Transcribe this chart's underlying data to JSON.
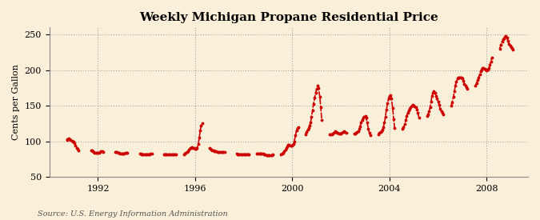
{
  "title": "Weekly Michigan Propane Residential Price",
  "ylabel": "Cents per Gallon",
  "source": "Source: U.S. Energy Information Administration",
  "background_color": "#faefd9",
  "line_color": "#cc0000",
  "xlim_start": 1990.0,
  "xlim_end": 2009.7,
  "ylim": [
    50,
    260
  ],
  "yticks": [
    50,
    100,
    150,
    200,
    250
  ],
  "xticks": [
    1992,
    1996,
    2000,
    2004,
    2008
  ],
  "segments": [
    [
      [
        1990.72,
        102
      ],
      [
        1990.75,
        103
      ],
      [
        1990.79,
        104
      ],
      [
        1990.83,
        103
      ],
      [
        1990.87,
        102
      ],
      [
        1990.92,
        101
      ],
      [
        1990.96,
        100
      ],
      [
        1991.0,
        99
      ],
      [
        1991.04,
        97
      ],
      [
        1991.08,
        94
      ],
      [
        1991.13,
        91
      ],
      [
        1991.17,
        89
      ],
      [
        1991.21,
        87
      ]
    ],
    [
      [
        1991.72,
        87
      ],
      [
        1991.75,
        87
      ],
      [
        1991.79,
        86
      ],
      [
        1991.83,
        85
      ],
      [
        1991.87,
        84
      ],
      [
        1991.92,
        84
      ],
      [
        1991.96,
        84
      ],
      [
        1992.0,
        84
      ],
      [
        1992.04,
        84
      ],
      [
        1992.08,
        85
      ],
      [
        1992.13,
        86
      ],
      [
        1992.17,
        86
      ],
      [
        1992.21,
        85
      ]
    ],
    [
      [
        1992.72,
        85
      ],
      [
        1992.75,
        85
      ],
      [
        1992.79,
        85
      ],
      [
        1992.83,
        84
      ],
      [
        1992.87,
        84
      ],
      [
        1992.92,
        83
      ],
      [
        1992.96,
        83
      ],
      [
        1993.0,
        83
      ],
      [
        1993.04,
        83
      ],
      [
        1993.08,
        83
      ],
      [
        1993.13,
        84
      ],
      [
        1993.17,
        84
      ],
      [
        1993.21,
        84
      ]
    ],
    [
      [
        1993.72,
        83
      ],
      [
        1993.75,
        83
      ],
      [
        1993.79,
        82
      ],
      [
        1993.83,
        82
      ],
      [
        1993.87,
        82
      ],
      [
        1993.92,
        82
      ],
      [
        1993.96,
        82
      ],
      [
        1994.0,
        82
      ],
      [
        1994.04,
        82
      ],
      [
        1994.08,
        82
      ],
      [
        1994.13,
        82
      ],
      [
        1994.17,
        83
      ],
      [
        1994.21,
        83
      ]
    ],
    [
      [
        1994.72,
        82
      ],
      [
        1994.75,
        82
      ],
      [
        1994.79,
        82
      ],
      [
        1994.83,
        82
      ],
      [
        1994.87,
        81
      ],
      [
        1994.92,
        81
      ],
      [
        1994.96,
        81
      ],
      [
        1995.0,
        81
      ],
      [
        1995.04,
        81
      ],
      [
        1995.08,
        81
      ],
      [
        1995.13,
        81
      ],
      [
        1995.17,
        82
      ],
      [
        1995.21,
        82
      ]
    ],
    [
      [
        1995.54,
        82
      ],
      [
        1995.58,
        83
      ],
      [
        1995.62,
        84
      ],
      [
        1995.67,
        85
      ],
      [
        1995.71,
        86
      ],
      [
        1995.75,
        88
      ],
      [
        1995.79,
        90
      ],
      [
        1995.83,
        91
      ],
      [
        1995.87,
        92
      ],
      [
        1995.92,
        91
      ],
      [
        1995.96,
        90
      ],
      [
        1996.0,
        89
      ],
      [
        1996.04,
        89
      ],
      [
        1996.08,
        91
      ],
      [
        1996.13,
        96
      ],
      [
        1996.17,
        105
      ],
      [
        1996.21,
        115
      ],
      [
        1996.25,
        122
      ],
      [
        1996.29,
        125
      ]
    ],
    [
      [
        1996.58,
        90
      ],
      [
        1996.63,
        89
      ],
      [
        1996.67,
        88
      ],
      [
        1996.71,
        87
      ],
      [
        1996.75,
        87
      ],
      [
        1996.79,
        86
      ],
      [
        1996.83,
        86
      ],
      [
        1996.87,
        86
      ],
      [
        1996.92,
        85
      ],
      [
        1996.96,
        85
      ],
      [
        1997.0,
        85
      ],
      [
        1997.04,
        85
      ],
      [
        1997.08,
        85
      ],
      [
        1997.13,
        85
      ],
      [
        1997.17,
        85
      ],
      [
        1997.21,
        85
      ]
    ],
    [
      [
        1997.71,
        83
      ],
      [
        1997.75,
        82
      ],
      [
        1997.79,
        82
      ],
      [
        1997.83,
        82
      ],
      [
        1997.87,
        82
      ],
      [
        1997.92,
        82
      ],
      [
        1997.96,
        82
      ],
      [
        1998.0,
        82
      ],
      [
        1998.04,
        82
      ],
      [
        1998.08,
        82
      ],
      [
        1998.13,
        82
      ],
      [
        1998.17,
        82
      ],
      [
        1998.21,
        82
      ]
    ],
    [
      [
        1998.54,
        83
      ],
      [
        1998.58,
        83
      ],
      [
        1998.63,
        83
      ],
      [
        1998.67,
        83
      ],
      [
        1998.71,
        83
      ],
      [
        1998.75,
        83
      ],
      [
        1998.79,
        83
      ],
      [
        1998.83,
        82
      ],
      [
        1998.87,
        81
      ],
      [
        1998.92,
        80
      ],
      [
        1998.96,
        80
      ],
      [
        1999.0,
        80
      ],
      [
        1999.04,
        80
      ],
      [
        1999.08,
        80
      ],
      [
        1999.13,
        80
      ],
      [
        1999.17,
        80
      ],
      [
        1999.21,
        81
      ]
    ],
    [
      [
        1999.54,
        82
      ],
      [
        1999.58,
        83
      ],
      [
        1999.63,
        84
      ],
      [
        1999.67,
        86
      ],
      [
        1999.71,
        88
      ],
      [
        1999.75,
        90
      ],
      [
        1999.79,
        93
      ],
      [
        1999.83,
        95
      ],
      [
        1999.87,
        95
      ],
      [
        1999.92,
        94
      ],
      [
        1999.96,
        94
      ],
      [
        2000.0,
        94
      ],
      [
        2000.04,
        96
      ],
      [
        2000.08,
        100
      ],
      [
        2000.13,
        108
      ],
      [
        2000.17,
        115
      ],
      [
        2000.21,
        119
      ],
      [
        2000.25,
        120
      ]
    ],
    [
      [
        2000.54,
        110
      ],
      [
        2000.58,
        113
      ],
      [
        2000.63,
        116
      ],
      [
        2000.67,
        119
      ],
      [
        2000.71,
        122
      ],
      [
        2000.75,
        126
      ],
      [
        2000.79,
        134
      ],
      [
        2000.83,
        143
      ],
      [
        2000.87,
        152
      ],
      [
        2000.92,
        161
      ],
      [
        2000.96,
        168
      ],
      [
        2001.0,
        174
      ],
      [
        2001.04,
        178
      ],
      [
        2001.08,
        175
      ],
      [
        2001.13,
        163
      ],
      [
        2001.17,
        148
      ],
      [
        2001.21,
        130
      ]
    ],
    [
      [
        2001.54,
        110
      ],
      [
        2001.58,
        110
      ],
      [
        2001.63,
        110
      ],
      [
        2001.67,
        111
      ],
      [
        2001.71,
        112
      ],
      [
        2001.75,
        114
      ],
      [
        2001.79,
        113
      ],
      [
        2001.83,
        112
      ],
      [
        2001.87,
        112
      ],
      [
        2001.92,
        111
      ],
      [
        2001.96,
        111
      ],
      [
        2002.0,
        111
      ],
      [
        2002.04,
        112
      ],
      [
        2002.08,
        113
      ],
      [
        2002.13,
        114
      ],
      [
        2002.17,
        113
      ],
      [
        2002.21,
        112
      ]
    ],
    [
      [
        2002.54,
        111
      ],
      [
        2002.58,
        111
      ],
      [
        2002.63,
        112
      ],
      [
        2002.67,
        113
      ],
      [
        2002.71,
        114
      ],
      [
        2002.75,
        117
      ],
      [
        2002.79,
        121
      ],
      [
        2002.83,
        126
      ],
      [
        2002.87,
        130
      ],
      [
        2002.92,
        133
      ],
      [
        2002.96,
        134
      ],
      [
        2003.0,
        135
      ],
      [
        2003.04,
        133
      ],
      [
        2003.08,
        126
      ],
      [
        2003.13,
        118
      ],
      [
        2003.17,
        112
      ],
      [
        2003.21,
        108
      ]
    ],
    [
      [
        2003.54,
        110
      ],
      [
        2003.58,
        112
      ],
      [
        2003.63,
        113
      ],
      [
        2003.67,
        114
      ],
      [
        2003.71,
        116
      ],
      [
        2003.75,
        120
      ],
      [
        2003.79,
        126
      ],
      [
        2003.83,
        134
      ],
      [
        2003.87,
        144
      ],
      [
        2003.92,
        153
      ],
      [
        2003.96,
        160
      ],
      [
        2004.0,
        164
      ],
      [
        2004.04,
        165
      ],
      [
        2004.08,
        160
      ],
      [
        2004.13,
        147
      ],
      [
        2004.17,
        131
      ],
      [
        2004.21,
        119
      ]
    ],
    [
      [
        2004.54,
        118
      ],
      [
        2004.58,
        120
      ],
      [
        2004.63,
        124
      ],
      [
        2004.67,
        130
      ],
      [
        2004.71,
        136
      ],
      [
        2004.75,
        140
      ],
      [
        2004.79,
        143
      ],
      [
        2004.83,
        146
      ],
      [
        2004.87,
        148
      ],
      [
        2004.92,
        150
      ],
      [
        2004.96,
        151
      ],
      [
        2005.0,
        150
      ],
      [
        2005.04,
        149
      ],
      [
        2005.08,
        148
      ],
      [
        2005.13,
        145
      ],
      [
        2005.17,
        140
      ],
      [
        2005.21,
        133
      ]
    ],
    [
      [
        2005.54,
        135
      ],
      [
        2005.58,
        138
      ],
      [
        2005.63,
        142
      ],
      [
        2005.67,
        148
      ],
      [
        2005.71,
        156
      ],
      [
        2005.75,
        164
      ],
      [
        2005.79,
        168
      ],
      [
        2005.83,
        170
      ],
      [
        2005.87,
        168
      ],
      [
        2005.92,
        164
      ],
      [
        2005.96,
        160
      ],
      [
        2006.0,
        156
      ],
      [
        2006.04,
        151
      ],
      [
        2006.08,
        146
      ],
      [
        2006.13,
        142
      ],
      [
        2006.17,
        140
      ],
      [
        2006.21,
        138
      ]
    ],
    [
      [
        2006.54,
        150
      ],
      [
        2006.58,
        155
      ],
      [
        2006.63,
        162
      ],
      [
        2006.67,
        170
      ],
      [
        2006.71,
        178
      ],
      [
        2006.75,
        184
      ],
      [
        2006.79,
        188
      ],
      [
        2006.83,
        190
      ],
      [
        2006.87,
        190
      ],
      [
        2006.92,
        190
      ],
      [
        2006.96,
        190
      ],
      [
        2007.0,
        188
      ],
      [
        2007.04,
        185
      ],
      [
        2007.08,
        181
      ],
      [
        2007.13,
        178
      ],
      [
        2007.17,
        176
      ],
      [
        2007.21,
        174
      ]
    ],
    [
      [
        2007.54,
        178
      ],
      [
        2007.58,
        182
      ],
      [
        2007.63,
        186
      ],
      [
        2007.67,
        190
      ],
      [
        2007.71,
        194
      ],
      [
        2007.75,
        198
      ],
      [
        2007.79,
        201
      ],
      [
        2007.83,
        203
      ],
      [
        2007.87,
        203
      ],
      [
        2007.92,
        202
      ],
      [
        2007.96,
        201
      ],
      [
        2008.0,
        200
      ],
      [
        2008.04,
        201
      ],
      [
        2008.08,
        203
      ],
      [
        2008.13,
        207
      ],
      [
        2008.17,
        212
      ],
      [
        2008.21,
        218
      ]
    ],
    [
      [
        2008.54,
        230
      ],
      [
        2008.58,
        236
      ],
      [
        2008.63,
        240
      ],
      [
        2008.67,
        243
      ],
      [
        2008.71,
        245
      ],
      [
        2008.75,
        247
      ],
      [
        2008.79,
        248
      ],
      [
        2008.83,
        246
      ],
      [
        2008.87,
        241
      ],
      [
        2008.92,
        237
      ],
      [
        2008.96,
        234
      ],
      [
        2009.0,
        232
      ],
      [
        2009.04,
        231
      ],
      [
        2009.08,
        229
      ]
    ]
  ]
}
